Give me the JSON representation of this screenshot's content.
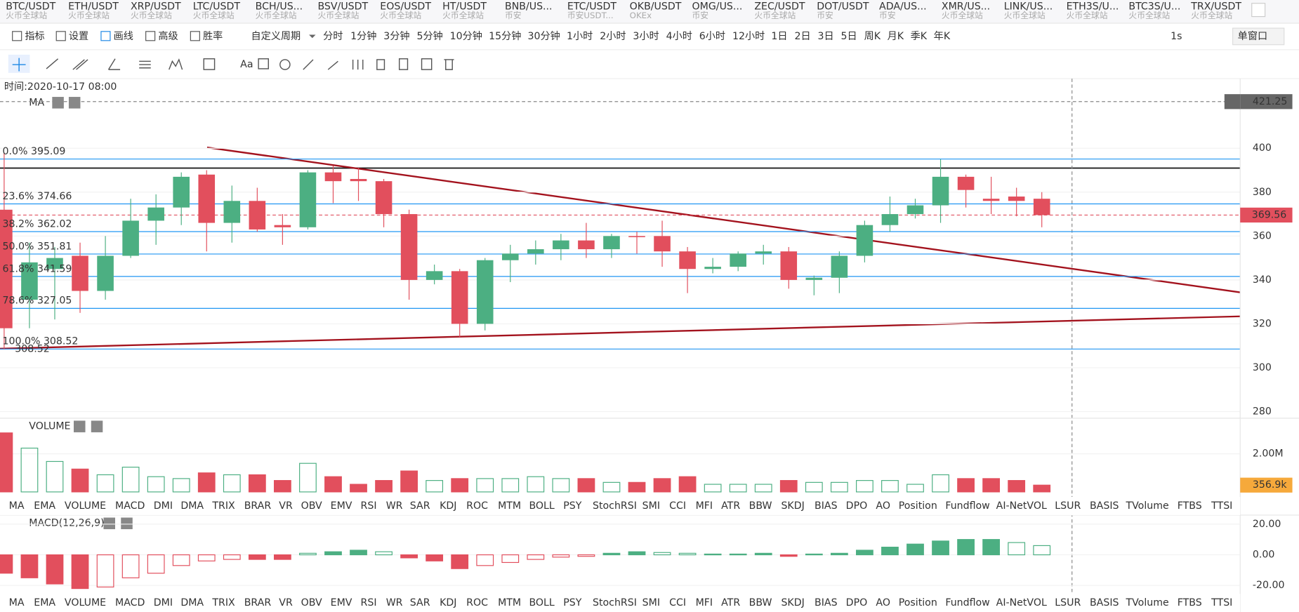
{
  "symbol_tabs": [
    {
      "symbol": "BTC/USDT",
      "exchange": "火币全球站"
    },
    {
      "symbol": "ETH/USDT",
      "exchange": "火币全球站"
    },
    {
      "symbol": "XRP/USDT",
      "exchange": "火币全球站"
    },
    {
      "symbol": "LTC/USDT",
      "exchange": "火币全球站"
    },
    {
      "symbol": "BCH/US...",
      "exchange": "火币全球站"
    },
    {
      "symbol": "BSV/USDT",
      "exchange": "火币全球站"
    },
    {
      "symbol": "EOS/USDT",
      "exchange": "火币全球站"
    },
    {
      "symbol": "HT/USDT",
      "exchange": "火币全球站"
    },
    {
      "symbol": "BNB/US...",
      "exchange": "币安"
    },
    {
      "symbol": "ETC/USDT",
      "exchange": "币安USDT..."
    },
    {
      "symbol": "OKB/USDT",
      "exchange": "OKEx"
    },
    {
      "symbol": "OMG/US...",
      "exchange": "币安"
    },
    {
      "symbol": "ZEC/USDT",
      "exchange": "火币全球站"
    },
    {
      "symbol": "DOT/USDT",
      "exchange": "币安"
    },
    {
      "symbol": "ADA/US...",
      "exchange": "币安"
    },
    {
      "symbol": "XMR/US...",
      "exchange": "火币全球站"
    },
    {
      "symbol": "LINK/US...",
      "exchange": "火币全球站"
    },
    {
      "symbol": "ETH3S/U...",
      "exchange": "火币全球站"
    },
    {
      "symbol": "BTC3S/U...",
      "exchange": "火币全球站"
    },
    {
      "symbol": "TRX/USDT",
      "exchange": "火币全球站"
    }
  ],
  "toolbar": {
    "items": [
      "指标",
      "设置",
      "画线",
      "高级",
      "胜率"
    ],
    "custom_period": "自定义周期",
    "periods": [
      "分时",
      "1分钟",
      "3分钟",
      "5分钟",
      "10分钟",
      "15分钟",
      "30分钟",
      "1小时",
      "2小时",
      "3小时",
      "4小时",
      "6小时",
      "12小时",
      "1日",
      "2日",
      "3日",
      "5日",
      "周K",
      "月K",
      "季K",
      "年K"
    ],
    "refresh": "1s",
    "window_mode": "单窗口"
  },
  "drawing_tools": {
    "text_tool": "Aa"
  },
  "main_chart": {
    "time_label": "时间:2020-10-17 08:00",
    "ma_label": "MA",
    "ylim": [
      277,
      431.7
    ],
    "yticks": [
      400,
      380,
      360,
      340,
      320,
      300,
      280
    ],
    "crosshair_price": 421.25,
    "last_price": 369.56,
    "low_marker": "308.52",
    "fib_levels": [
      {
        "value": 395.09,
        "label": "0.0% 395.09"
      },
      {
        "value": 374.66,
        "label": "23.6% 374.66"
      },
      {
        "value": 362.02,
        "label": "38.2% 362.02"
      },
      {
        "value": 351.81,
        "label": "50.0% 351.81"
      },
      {
        "value": 341.59,
        "label": "61.8% 341.59"
      },
      {
        "value": 327.05,
        "label": "78.6% 327.05"
      },
      {
        "value": 308.52,
        "label": "100.0% 308.52"
      }
    ],
    "open": [
      372,
      331,
      345,
      351,
      335,
      351,
      367,
      373,
      388,
      366,
      376,
      365,
      364,
      389,
      386,
      385,
      370,
      340,
      344,
      320,
      349,
      352,
      354,
      358,
      354,
      360,
      360,
      353,
      345,
      346,
      352,
      353,
      340,
      341,
      351,
      365,
      370,
      374,
      387,
      377,
      378,
      377
    ],
    "high": [
      398,
      357,
      355,
      357,
      360,
      377,
      379,
      389,
      390,
      383,
      382,
      370,
      390,
      392,
      391,
      386,
      372,
      347,
      345,
      350,
      356,
      358,
      361,
      366,
      361,
      362,
      367,
      355,
      350,
      353,
      356,
      355,
      342,
      353,
      367,
      378,
      377,
      395,
      388,
      387,
      382,
      380
    ],
    "low": [
      308.52,
      318,
      322,
      325,
      331,
      350,
      356,
      365,
      353,
      357,
      362,
      356,
      363,
      375,
      376,
      364,
      331,
      338,
      314,
      317,
      339,
      347,
      349,
      350,
      350,
      352,
      346,
      334,
      343,
      344,
      347,
      336,
      333,
      334,
      348,
      362,
      368,
      366,
      373,
      370,
      369,
      364
    ],
    "close": [
      318,
      348,
      350,
      335,
      351,
      367,
      373,
      387,
      366,
      376,
      363,
      364,
      389,
      385,
      385,
      370,
      340,
      344,
      320,
      349,
      352,
      354,
      358,
      354,
      360,
      359.5,
      353,
      345,
      346,
      352,
      353,
      340,
      341,
      351,
      365,
      370,
      374,
      387,
      381,
      376,
      376,
      369.56
    ]
  },
  "volume": {
    "label": "VOLUME",
    "ylim": [
      0,
      3870000
    ],
    "yticks": [
      {
        "value": 2000000,
        "label": "2.00M"
      }
    ],
    "values": [
      3100000,
      2300000,
      1600000,
      1200000,
      900000,
      1300000,
      800000,
      700000,
      1000000,
      900000,
      900000,
      600000,
      1500000,
      800000,
      400000,
      600000,
      1100000,
      600000,
      700000,
      700000,
      700000,
      800000,
      700000,
      700000,
      500000,
      500000,
      700000,
      800000,
      400000,
      400000,
      400000,
      600000,
      500000,
      500000,
      600000,
      600000,
      400000,
      900000,
      700000,
      700000,
      600000,
      356900
    ],
    "last": {
      "value": 356900,
      "label": "356.9k"
    }
  },
  "macd": {
    "label": "MACD(12,26,9)",
    "ylim": [
      -37.3,
      25.9
    ],
    "yticks": [
      {
        "value": 20,
        "label": "20.00"
      },
      {
        "value": 0,
        "label": "0.00"
      },
      {
        "value": -20,
        "label": "-20.00"
      }
    ],
    "values": [
      -12,
      -15,
      -19,
      -22,
      -21,
      -15,
      -12,
      -7,
      -4,
      -3,
      -3,
      -3,
      1,
      2,
      3,
      2,
      -2,
      -4,
      -9,
      -7,
      -5,
      -3,
      -1.5,
      -1,
      1,
      2,
      1.5,
      1,
      0.5,
      0.5,
      1,
      -1,
      0.5,
      1,
      3,
      5,
      7,
      9,
      10,
      10,
      8,
      6
    ]
  },
  "indicators": [
    "MA",
    "EMA",
    "VOLUME",
    "MACD",
    "DMI",
    "DMA",
    "TRIX",
    "BRAR",
    "VR",
    "OBV",
    "EMV",
    "RSI",
    "WR",
    "SAR",
    "KDJ",
    "ROC",
    "MTM",
    "BOLL",
    "PSY",
    "StochRSI",
    "SMI",
    "CCI",
    "MFI",
    "ATR",
    "BBW",
    "SKDJ",
    "BIAS",
    "DPO",
    "AO",
    "Position",
    "Fundflow",
    "AI-NetVOL",
    "LSUR",
    "BASIS",
    "TVolume",
    "FTBS",
    "TTSI"
  ]
}
